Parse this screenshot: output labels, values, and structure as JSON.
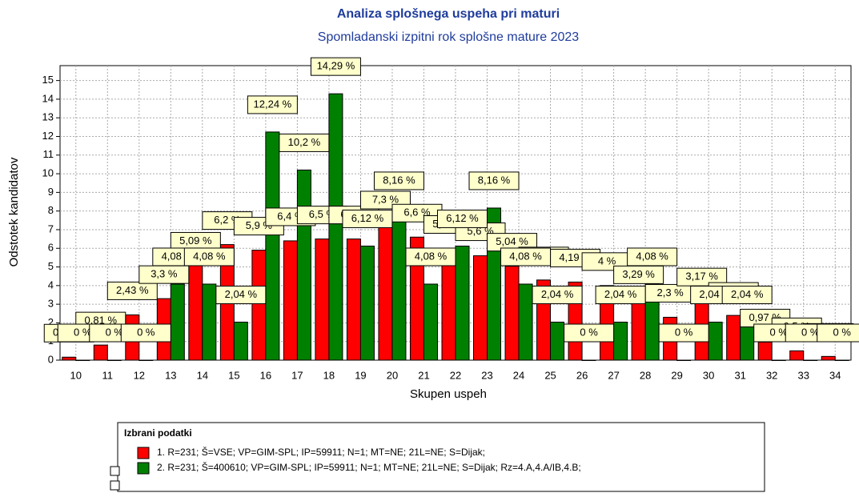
{
  "chart_data": {
    "type": "bar",
    "title": "Analiza splošnega uspeha pri maturi",
    "subtitle": "Spomladanski izpitni rok splošne mature 2023",
    "x_label": "Skupen uspeh",
    "y_label": "Odstotek kandidatov",
    "categories": [
      "10",
      "11",
      "12",
      "13",
      "14",
      "15",
      "16",
      "17",
      "18",
      "19",
      "20",
      "21",
      "22",
      "23",
      "24",
      "25",
      "26",
      "27",
      "28",
      "29",
      "30",
      "31",
      "32",
      "33",
      "34"
    ],
    "series": [
      {
        "name": "1. R=231; Š=VSE; VP=GIM-SPL; IP=59911; N=1; MT=NE; 21L=NE; S=Dijak;",
        "color": "#ff0000",
        "values": [
          0.16,
          0.81,
          2.43,
          3.3,
          5.09,
          6.2,
          5.9,
          6.4,
          6.5,
          6.5,
          7.3,
          6.6,
          5.99,
          5.6,
          5.04,
          4.3,
          4.19,
          4,
          3.29,
          2.3,
          3.17,
          2.4,
          0.97,
          0.5,
          0.2
        ],
        "value_labels": [
          "0,16 %",
          "0,81 %",
          "2,43 %",
          "3,3 %",
          "5,09 %",
          "6,2 %",
          "5,9 %",
          "6,4 %",
          "6,5 %",
          "6,5 %",
          "7,3 %",
          "6,6 %",
          "5,99 %",
          "5,6 %",
          "5,04 %",
          "4,3 %",
          "4,19 %",
          "4 %",
          "3,29 %",
          "2,3 %",
          "3,17 %",
          "2,4 %",
          "0,97 %",
          "0,5 %",
          "0,2 %"
        ]
      },
      {
        "name": "2. R=231; Š=400610; VP=GIM-SPL; IP=59911; N=1; MT=NE; 21L=NE; S=Dijak; Rz=4.A,4.A/IB,4.B;",
        "color": "#008000",
        "values": [
          0,
          0,
          0,
          4.08,
          4.08,
          2.04,
          12.24,
          10.2,
          14.29,
          6.12,
          8.16,
          4.08,
          6.12,
          8.16,
          4.08,
          2.04,
          0,
          2.04,
          4.08,
          0,
          2.04,
          2.04,
          0,
          0,
          0
        ],
        "value_labels": [
          "0 %",
          "0 %",
          "0 %",
          "4,08 %",
          "4,08 %",
          "2,04 %",
          "12,24 %",
          "10,2 %",
          "14,29 %",
          "6,12 %",
          "8,16 %",
          "4,08 %",
          "6,12 %",
          "8,16 %",
          "4,08 %",
          "2,04 %",
          "0 %",
          "2,04 %",
          "4,08 %",
          "0 %",
          "2,04 %",
          "2,04 %",
          "0 %",
          "0 %",
          "0 %"
        ]
      }
    ],
    "ylim": [
      0,
      15.8
    ],
    "yticks": [
      0,
      1,
      2,
      3,
      4,
      5,
      6,
      7,
      8,
      9,
      10,
      11,
      12,
      13,
      14,
      15
    ],
    "grid": true,
    "legend_title": "Izbrani podatki"
  }
}
